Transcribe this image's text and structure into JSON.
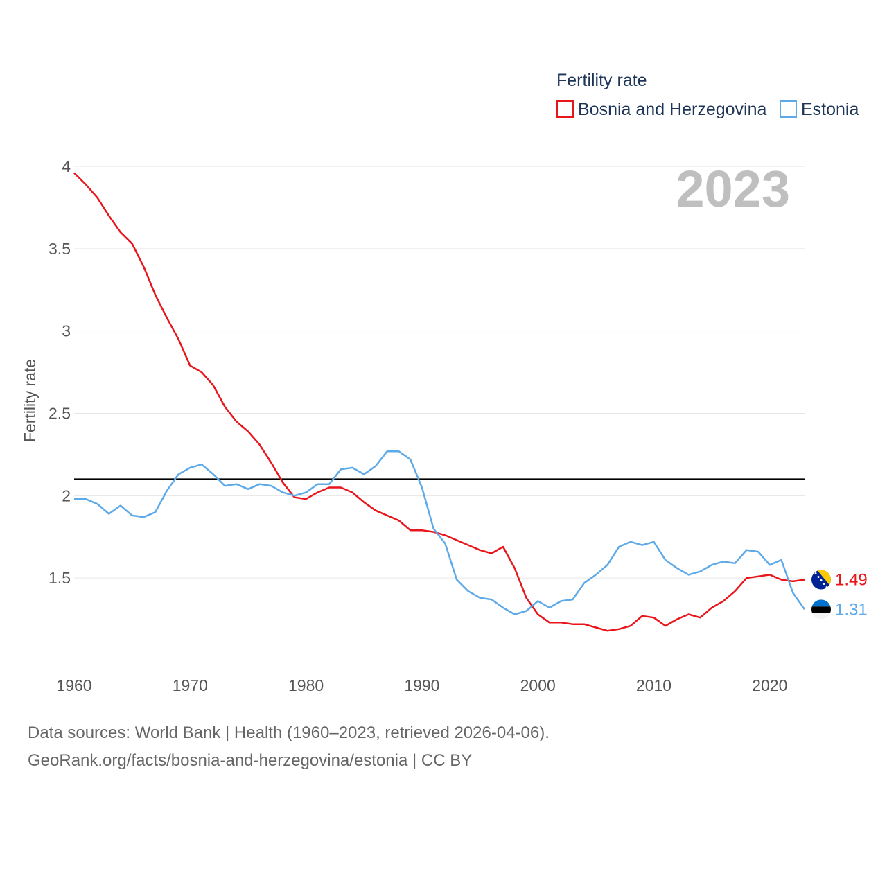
{
  "chart_data": {
    "type": "line",
    "legend_title": "Fertility rate",
    "ylabel": "Fertility rate",
    "xlabel": "",
    "year_label": "2023",
    "xlim": [
      1960,
      2023
    ],
    "ylim": [
      1.0,
      4.0
    ],
    "x_ticks": [
      1960,
      1970,
      1980,
      1990,
      2000,
      2010,
      2020
    ],
    "y_ticks": [
      {
        "value": 1.5,
        "label": "1.5"
      },
      {
        "value": 2.0,
        "label": "2"
      },
      {
        "value": 2.5,
        "label": "2.5"
      },
      {
        "value": 3.0,
        "label": "3"
      },
      {
        "value": 3.5,
        "label": "3.5"
      },
      {
        "value": 4.0,
        "label": "4"
      }
    ],
    "reference_line": {
      "value": 2.1,
      "color": "#000000"
    },
    "x": [
      1960,
      1961,
      1962,
      1963,
      1964,
      1965,
      1966,
      1967,
      1968,
      1969,
      1970,
      1971,
      1972,
      1973,
      1974,
      1975,
      1976,
      1977,
      1978,
      1979,
      1980,
      1981,
      1982,
      1983,
      1984,
      1985,
      1986,
      1987,
      1988,
      1989,
      1990,
      1991,
      1992,
      1993,
      1994,
      1995,
      1996,
      1997,
      1998,
      1999,
      2000,
      2001,
      2002,
      2003,
      2004,
      2005,
      2006,
      2007,
      2008,
      2009,
      2010,
      2011,
      2012,
      2013,
      2014,
      2015,
      2016,
      2017,
      2018,
      2019,
      2020,
      2021,
      2022,
      2023
    ],
    "series": [
      {
        "name": "Bosnia and Herzegovina",
        "color": "#e8151b",
        "end_label": "1.49",
        "values": [
          3.96,
          3.89,
          3.81,
          3.7,
          3.6,
          3.53,
          3.39,
          3.22,
          3.08,
          2.95,
          2.79,
          2.75,
          2.67,
          2.54,
          2.45,
          2.39,
          2.31,
          2.2,
          2.08,
          1.99,
          1.98,
          2.02,
          2.05,
          2.05,
          2.02,
          1.96,
          1.91,
          1.88,
          1.85,
          1.79,
          1.79,
          1.78,
          1.76,
          1.73,
          1.7,
          1.67,
          1.65,
          1.69,
          1.56,
          1.38,
          1.28,
          1.23,
          1.23,
          1.22,
          1.22,
          1.2,
          1.18,
          1.19,
          1.21,
          1.27,
          1.26,
          1.21,
          1.25,
          1.28,
          1.26,
          1.32,
          1.36,
          1.42,
          1.5,
          1.51,
          1.52,
          1.49,
          1.48,
          1.49
        ]
      },
      {
        "name": "Estonia",
        "color": "#5ea9e8",
        "end_label": "1.31",
        "values": [
          1.98,
          1.98,
          1.95,
          1.89,
          1.94,
          1.88,
          1.87,
          1.9,
          2.03,
          2.13,
          2.17,
          2.19,
          2.13,
          2.06,
          2.07,
          2.04,
          2.07,
          2.06,
          2.02,
          2.0,
          2.02,
          2.07,
          2.07,
          2.16,
          2.17,
          2.13,
          2.18,
          2.27,
          2.27,
          2.22,
          2.05,
          1.8,
          1.71,
          1.49,
          1.42,
          1.38,
          1.37,
          1.32,
          1.28,
          1.3,
          1.36,
          1.32,
          1.36,
          1.37,
          1.47,
          1.52,
          1.58,
          1.69,
          1.72,
          1.7,
          1.72,
          1.61,
          1.56,
          1.52,
          1.54,
          1.58,
          1.6,
          1.59,
          1.67,
          1.66,
          1.58,
          1.61,
          1.41,
          1.31
        ]
      }
    ]
  },
  "footer": {
    "line1": "Data sources: World Bank | Health (1960–2023, retrieved 2026-04-06).",
    "line2": "GeoRank.org/facts/bosnia-and-herzegovina/estonia | CC BY"
  }
}
